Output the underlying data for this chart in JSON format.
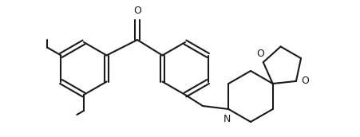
{
  "background": "#ffffff",
  "line_color": "#1a1a1a",
  "line_width": 1.5,
  "fig_width": 4.52,
  "fig_height": 1.72,
  "dpi": 100,
  "xlim": [
    0,
    4.52
  ],
  "ylim": [
    0,
    1.72
  ]
}
